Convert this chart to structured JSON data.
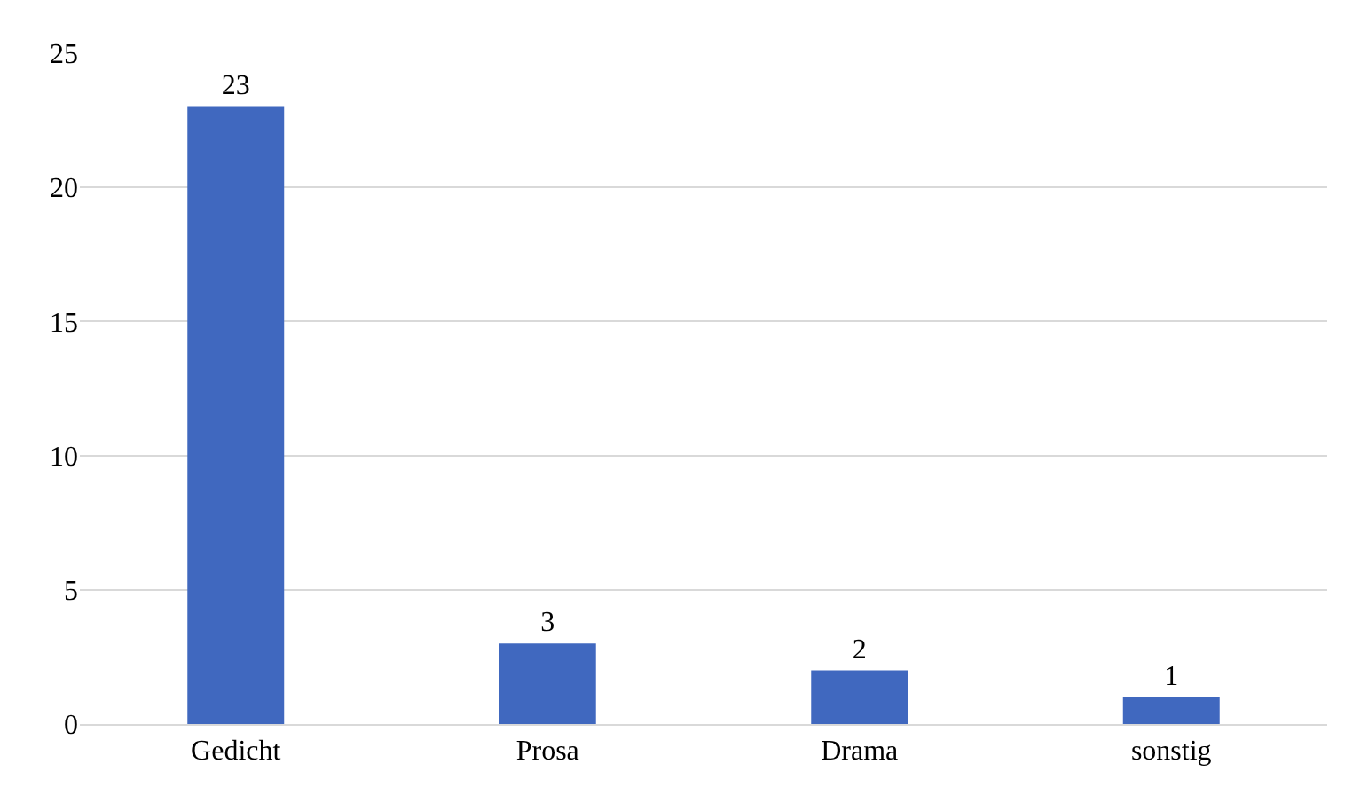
{
  "chart_data": {
    "type": "bar",
    "categories": [
      "Gedicht",
      "Prosa",
      "Drama",
      "sonstig"
    ],
    "values": [
      23,
      3,
      2,
      1
    ],
    "color": "#4068bf",
    "ylim": [
      0,
      25
    ],
    "yticks": [
      0,
      5,
      10,
      15,
      20,
      25
    ],
    "grid": "y",
    "data_labels": true
  }
}
